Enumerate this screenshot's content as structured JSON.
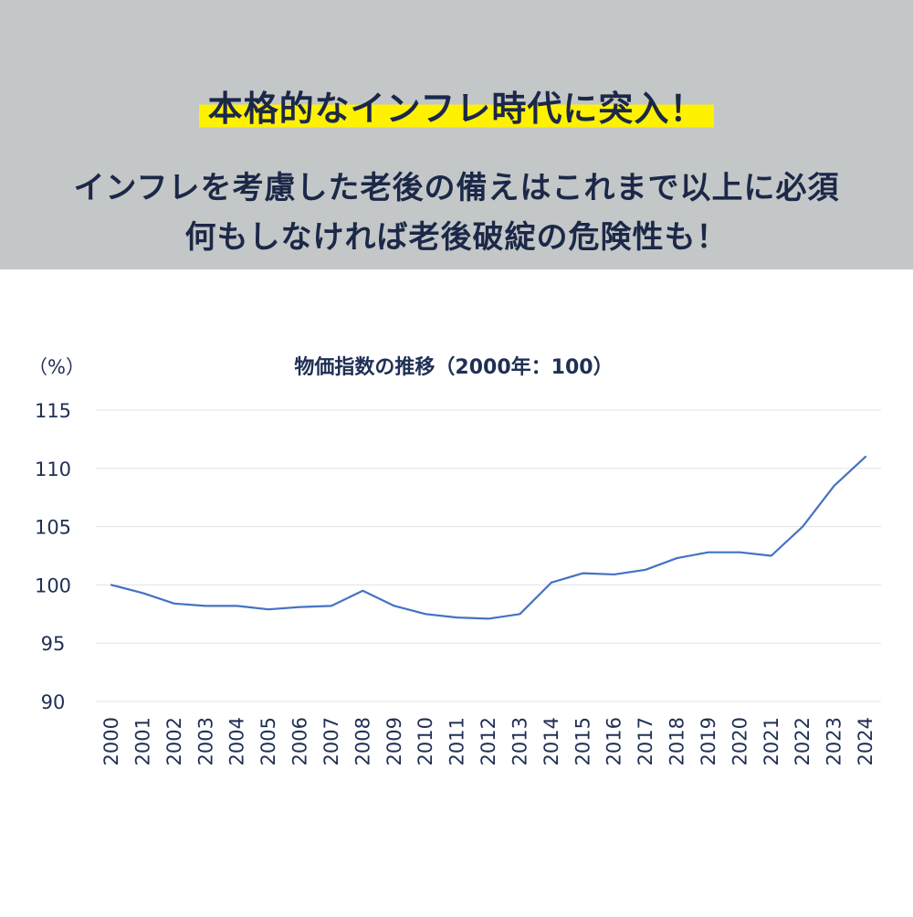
{
  "header": {
    "headline": "本格的なインフレ時代に突入！",
    "subline1": "インフレを考慮した老後の備えはこれまで以上に必須",
    "subline2": "何もしなければ老後破綻の危険性も！",
    "highlight_color": "#fff200",
    "banner_color": "#c3c7c7"
  },
  "chart_data": {
    "type": "line",
    "title": "物価指数の推移（2000年：100）",
    "ylabel": "（%）",
    "xlabel": "",
    "ylim": [
      90,
      115
    ],
    "yticks": [
      90,
      95,
      100,
      105,
      110,
      115
    ],
    "grid": true,
    "line_color": "#4472c4",
    "categories": [
      "2000",
      "2001",
      "2002",
      "2003",
      "2004",
      "2005",
      "2006",
      "2007",
      "2008",
      "2009",
      "2010",
      "2011",
      "2012",
      "2013",
      "2014",
      "2015",
      "2016",
      "2017",
      "2018",
      "2019",
      "2020",
      "2021",
      "2022",
      "2023",
      "2024"
    ],
    "series": [
      {
        "values": [
          100.0,
          99.3,
          98.4,
          98.2,
          98.2,
          97.9,
          98.1,
          98.2,
          99.5,
          98.2,
          97.5,
          97.2,
          97.1,
          97.5,
          100.2,
          101.0,
          100.9,
          101.3,
          102.3,
          102.8,
          102.8,
          102.5,
          105.0,
          108.5,
          111.0
        ]
      }
    ]
  }
}
